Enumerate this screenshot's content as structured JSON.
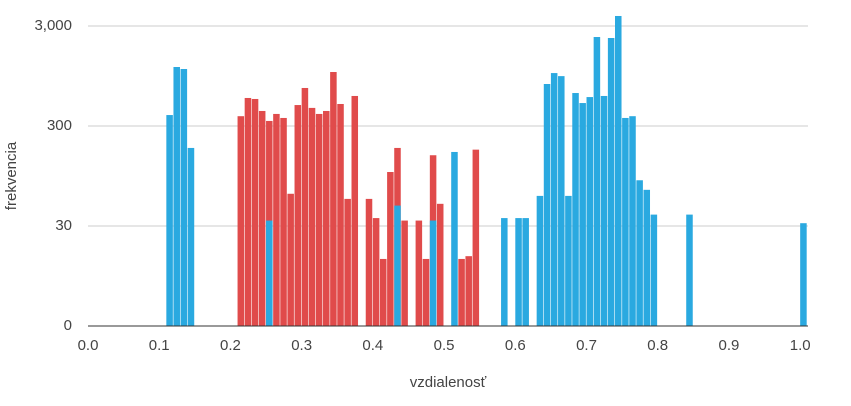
{
  "chart_data": {
    "type": "histogram",
    "xlabel": "vzdialenosť",
    "ylabel": "frekvencia",
    "bins": [
      0.1,
      0.11,
      0.12,
      0.13,
      0.14,
      0.15,
      0.16,
      0.17,
      0.18,
      0.19,
      0.2,
      0.21,
      0.22,
      0.23,
      0.24,
      0.25,
      0.26,
      0.27,
      0.28,
      0.29,
      0.3,
      0.31,
      0.32,
      0.33,
      0.34,
      0.35,
      0.36,
      0.37,
      0.38,
      0.39,
      0.4,
      0.41,
      0.42,
      0.43,
      0.44,
      0.45,
      0.46,
      0.47,
      0.48,
      0.49,
      0.5,
      0.51,
      0.52,
      0.53,
      0.54,
      0.55,
      0.56,
      0.57,
      0.58,
      0.59,
      0.6,
      0.61,
      0.62,
      0.63,
      0.64,
      0.65,
      0.66,
      0.67,
      0.68,
      0.69,
      0.7,
      0.71,
      0.72,
      0.73,
      0.74,
      0.75,
      0.76,
      0.77,
      0.78,
      0.79,
      0.8,
      0.81,
      0.82,
      0.83,
      0.84,
      0.85,
      0.86,
      0.87,
      0.88,
      0.89,
      0.9,
      0.91,
      0.92,
      0.93,
      0.94,
      0.95,
      0.96,
      0.97,
      0.98,
      0.99,
      1.0,
      1.01
    ],
    "series": [
      {
        "color": "#e04b4b",
        "values": [
          0,
          0,
          0,
          0,
          0,
          0,
          0,
          0,
          0,
          0,
          0,
          376,
          572,
          559,
          424,
          337,
          396,
          361,
          63,
          486,
          720,
          455,
          396,
          424,
          1040,
          498,
          56,
          599,
          0,
          56,
          36,
          9,
          104,
          181,
          34,
          0,
          34,
          9,
          153,
          50,
          0,
          0,
          9,
          10,
          174,
          0,
          0,
          0,
          0,
          0,
          0,
          0,
          0,
          0,
          0,
          0,
          0,
          0,
          0,
          0,
          0,
          0,
          0,
          0,
          0,
          0,
          0,
          0,
          0,
          0,
          0,
          0,
          0,
          0,
          0,
          0,
          0,
          0,
          0,
          0,
          0,
          0,
          0,
          0,
          0,
          0,
          0,
          0,
          0,
          0,
          0
        ]
      },
      {
        "color": "#2aa9e0",
        "values": [
          0,
          386,
          1167,
          1114,
          181,
          0,
          0,
          0,
          0,
          0,
          0,
          0,
          0,
          0,
          0,
          34,
          0,
          0,
          0,
          0,
          0,
          0,
          0,
          0,
          0,
          0,
          0,
          0,
          0,
          0,
          0,
          0,
          0,
          48,
          0,
          0,
          0,
          0,
          34,
          0,
          0,
          165,
          0,
          0,
          0,
          0,
          0,
          0,
          36,
          0,
          36,
          36,
          0,
          60,
          789,
          1015,
          946,
          60,
          641,
          509,
          584,
          2328,
          599,
          2275,
          3778,
          361,
          376,
          86,
          69,
          39,
          0,
          0,
          0,
          0,
          39,
          0,
          0,
          0,
          0,
          0,
          0,
          0,
          0,
          0,
          0,
          0,
          0,
          0,
          0,
          0,
          32
        ]
      }
    ],
    "xlim": [
      0,
      1.011
    ],
    "xticks": [
      {
        "value": 0,
        "label": "0.0"
      },
      {
        "value": 0.1,
        "label": "0.1"
      },
      {
        "value": 0.2,
        "label": "0.2"
      },
      {
        "value": 0.3,
        "label": "0.3"
      },
      {
        "value": 0.4,
        "label": "0.4"
      },
      {
        "value": 0.5,
        "label": "0.5"
      },
      {
        "value": 0.6,
        "label": "0.6"
      },
      {
        "value": 0.7,
        "label": "0.7"
      },
      {
        "value": 0.8,
        "label": "0.8"
      },
      {
        "value": 0.9,
        "label": "0.9"
      },
      {
        "value": 1,
        "label": "1.0"
      }
    ],
    "ylim": [
      0,
      3800
    ],
    "yscale": "symlog",
    "yticks": [
      0,
      30,
      300,
      {
        "value": 3000,
        "label": "3,000"
      }
    ],
    "grid": true
  }
}
